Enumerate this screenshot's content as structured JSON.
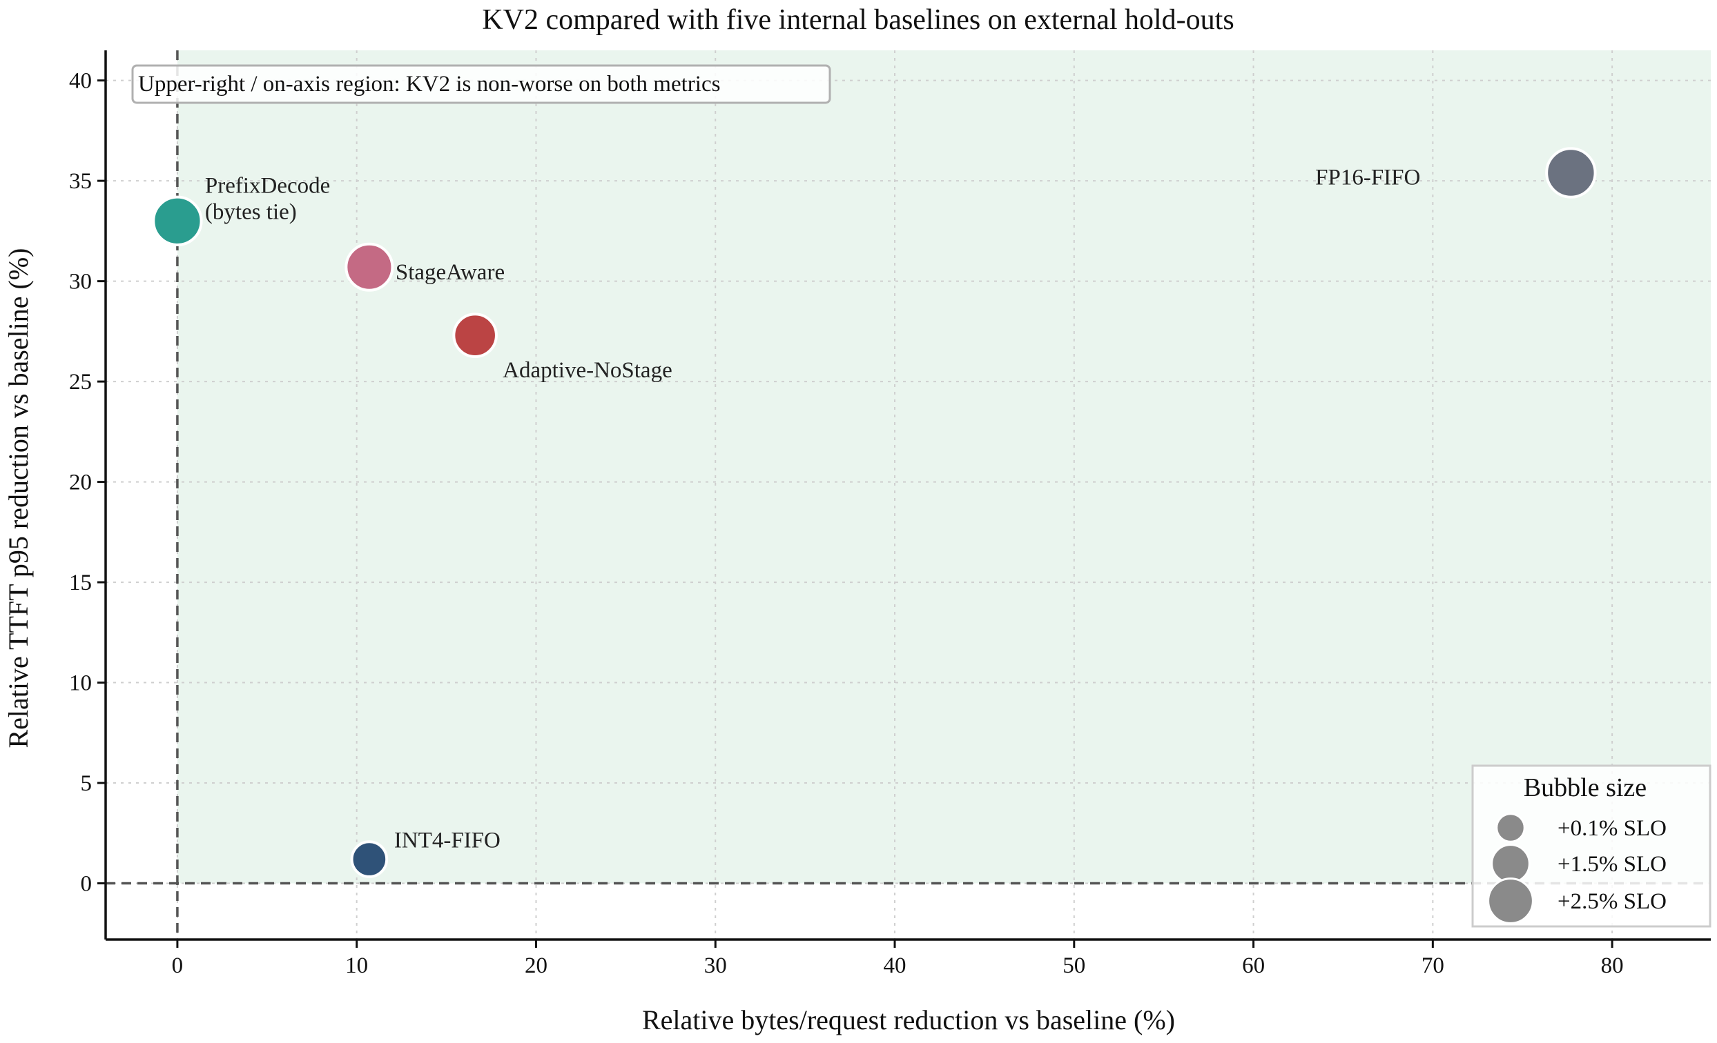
{
  "chart_data": {
    "type": "scatter",
    "title": "KV2 compared with five internal baselines on external hold-outs",
    "xlabel": "Relative bytes/request reduction vs baseline (%)",
    "ylabel": "Relative TTFT p95 reduction vs baseline (%)",
    "xlim": [
      -4,
      85.5
    ],
    "ylim": [
      -2.8,
      41.5
    ],
    "xticks": [
      0,
      10,
      20,
      30,
      40,
      50,
      60,
      70,
      80
    ],
    "yticks": [
      0,
      5,
      10,
      15,
      20,
      25,
      30,
      35,
      40
    ],
    "grid": true,
    "annotation": "Upper-right / on-axis region: KV2 is non-worse on both metrics",
    "points": [
      {
        "label": "PrefixDecode\n(bytes tie)",
        "x": 0.0,
        "y": 33.0,
        "slo": 2.4,
        "color": "#2a9d8f"
      },
      {
        "label": "StageAware",
        "x": 10.7,
        "y": 30.7,
        "slo": 2.2,
        "color": "#c46a84"
      },
      {
        "label": "Adaptive-NoStage",
        "x": 16.6,
        "y": 27.3,
        "slo": 1.7,
        "color": "#bb4444"
      },
      {
        "label": "FP16-FIFO",
        "x": 77.7,
        "y": 35.4,
        "slo": 2.5,
        "color": "#6b7280"
      },
      {
        "label": "INT4-FIFO",
        "x": 10.7,
        "y": 1.2,
        "slo": 0.7,
        "color": "#2f5278"
      }
    ],
    "legend": {
      "title": "Bubble size",
      "placement": "lower-right",
      "entries": [
        {
          "label": "+0.1% SLO",
          "slo": 0.1
        },
        {
          "label": "+1.5% SLO",
          "slo": 1.5
        },
        {
          "label": "+2.5% SLO",
          "slo": 2.5
        }
      ],
      "color": "#8a8a8a"
    },
    "colors": {
      "region": "#eaf5ee",
      "reference_line": "#555555",
      "grid": "#cfcfcf"
    }
  }
}
